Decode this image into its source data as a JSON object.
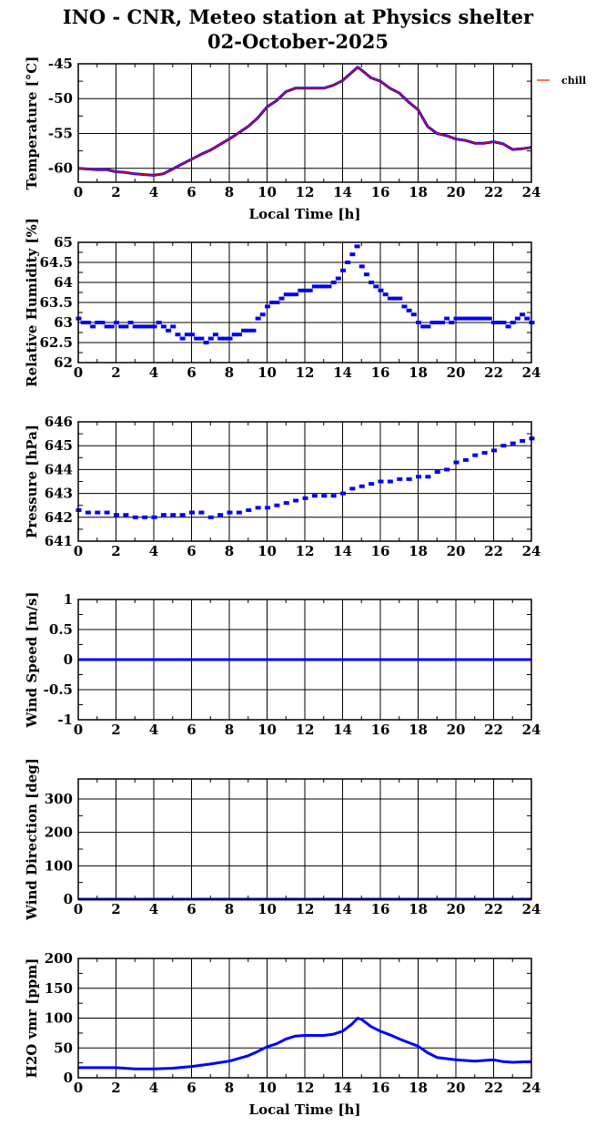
{
  "header": {
    "title": "INO - CNR, Meteo station at Physics shelter",
    "subtitle": "02-October-2025"
  },
  "chart_data": [
    {
      "type": "line",
      "ylabel": "Temperature [°C]",
      "xlabel": "Local Time [h]",
      "xlim": [
        0,
        24
      ],
      "ylim": [
        -62,
        -45
      ],
      "xticks": [
        0,
        2,
        4,
        6,
        8,
        10,
        12,
        14,
        16,
        18,
        20,
        22,
        24
      ],
      "yticks": [
        -60,
        -55,
        -50,
        -45
      ],
      "grid": true,
      "legend": {
        "entries": [
          "chill"
        ],
        "placement": "outside-right"
      },
      "series": [
        {
          "color": "#0000ff",
          "x": [
            0,
            0.5,
            1,
            1.5,
            2,
            2.5,
            3,
            3.5,
            4,
            4.5,
            5,
            5.5,
            6,
            6.5,
            7,
            7.5,
            8,
            8.5,
            9,
            9.5,
            10,
            10.5,
            11,
            11.5,
            12,
            12.5,
            13,
            13.5,
            14,
            14.5,
            14.8,
            15,
            15.5,
            16,
            16.5,
            17,
            17.5,
            18,
            18.5,
            19,
            19.5,
            20,
            20.5,
            21,
            21.5,
            22,
            22.5,
            23,
            23.5,
            24
          ],
          "y": [
            -60,
            -60.1,
            -60.2,
            -60.2,
            -60.5,
            -60.6,
            -60.8,
            -60.9,
            -61,
            -60.8,
            -60.1,
            -59.4,
            -58.7,
            -58,
            -57.4,
            -56.6,
            -55.8,
            -54.9,
            -54.0,
            -52.8,
            -51.2,
            -50.3,
            -49.0,
            -48.5,
            -48.5,
            -48.5,
            -48.5,
            -48.1,
            -47.4,
            -46.2,
            -45.5,
            -45.9,
            -47,
            -47.5,
            -48.5,
            -49.2,
            -50.5,
            -51.6,
            -54.0,
            -55.0,
            -55.3,
            -55.8,
            -56.0,
            -56.4,
            -56.4,
            -56.2,
            -56.5,
            -57.3,
            -57.2,
            -57.0
          ]
        },
        {
          "name": "chill",
          "color": "#ff0000",
          "x": [
            0,
            0.5,
            1,
            1.5,
            2,
            2.5,
            3,
            3.5,
            4,
            4.5,
            5,
            5.5,
            6,
            6.5,
            7,
            7.5,
            8,
            8.5,
            9,
            9.5,
            10,
            10.5,
            11,
            11.5,
            12,
            12.5,
            13,
            13.5,
            14,
            14.5,
            14.8,
            15,
            15.5,
            16,
            16.5,
            17,
            17.5,
            18,
            18.5,
            19,
            19.5,
            20,
            20.5,
            21,
            21.5,
            22,
            22.5,
            23,
            23.5,
            24
          ],
          "y": [
            -60,
            -60.1,
            -60.2,
            -60.2,
            -60.5,
            -60.6,
            -60.8,
            -60.9,
            -61,
            -60.8,
            -60.1,
            -59.4,
            -58.7,
            -58,
            -57.4,
            -56.6,
            -55.8,
            -54.9,
            -54.0,
            -52.8,
            -51.2,
            -50.3,
            -49.0,
            -48.5,
            -48.5,
            -48.5,
            -48.5,
            -48.1,
            -47.4,
            -46.2,
            -45.5,
            -45.9,
            -47,
            -47.5,
            -48.5,
            -49.2,
            -50.5,
            -51.6,
            -54.0,
            -55.0,
            -55.3,
            -55.8,
            -56.0,
            -56.4,
            -56.4,
            -56.2,
            -56.5,
            -57.3,
            -57.2,
            -57.0
          ]
        }
      ]
    },
    {
      "type": "scatter",
      "ylabel": "Relative Humidity [%]",
      "xlim": [
        0,
        24
      ],
      "ylim": [
        62,
        65
      ],
      "xticks": [
        0,
        2,
        4,
        6,
        8,
        10,
        12,
        14,
        16,
        18,
        20,
        22,
        24
      ],
      "yticks": [
        62,
        62.5,
        63,
        63.5,
        64,
        64.5,
        65
      ],
      "ytick_labels": [
        "62",
        "62.5",
        "63",
        "63.5",
        "64",
        "64.5",
        "65"
      ],
      "grid": true,
      "series": [
        {
          "color": "#0000ff",
          "x": [
            0,
            0.25,
            0.5,
            0.75,
            1,
            1.25,
            1.5,
            1.75,
            2,
            2.25,
            2.5,
            2.75,
            3,
            3.25,
            3.5,
            3.75,
            4,
            4.25,
            4.5,
            4.75,
            5,
            5.25,
            5.5,
            5.75,
            6,
            6.25,
            6.5,
            6.75,
            7,
            7.25,
            7.5,
            7.75,
            8,
            8.25,
            8.5,
            8.75,
            9,
            9.25,
            9.5,
            9.75,
            10,
            10.25,
            10.5,
            10.75,
            11,
            11.25,
            11.5,
            11.75,
            12,
            12.25,
            12.5,
            12.75,
            13,
            13.25,
            13.5,
            13.75,
            14,
            14.25,
            14.5,
            14.75,
            15,
            15.25,
            15.5,
            15.75,
            16,
            16.25,
            16.5,
            16.75,
            17,
            17.25,
            17.5,
            17.75,
            18,
            18.25,
            18.5,
            18.75,
            19,
            19.25,
            19.5,
            19.75,
            20,
            20.25,
            20.5,
            20.75,
            21,
            21.25,
            21.5,
            21.75,
            22,
            22.25,
            22.5,
            22.75,
            23,
            23.25,
            23.5,
            23.75,
            24
          ],
          "y": [
            63.1,
            63,
            63,
            62.9,
            63,
            63,
            62.9,
            62.9,
            63,
            62.9,
            62.9,
            63,
            62.9,
            62.9,
            62.9,
            62.9,
            62.9,
            63,
            62.9,
            62.8,
            62.9,
            62.7,
            62.6,
            62.7,
            62.7,
            62.6,
            62.6,
            62.5,
            62.6,
            62.7,
            62.6,
            62.6,
            62.6,
            62.7,
            62.7,
            62.8,
            62.8,
            62.8,
            63.1,
            63.2,
            63.4,
            63.5,
            63.5,
            63.6,
            63.7,
            63.7,
            63.7,
            63.8,
            63.8,
            63.8,
            63.9,
            63.9,
            63.9,
            63.9,
            64.0,
            64.1,
            64.3,
            64.5,
            64.7,
            64.9,
            64.4,
            64.2,
            64.0,
            63.9,
            63.8,
            63.7,
            63.6,
            63.6,
            63.6,
            63.4,
            63.3,
            63.2,
            63.0,
            62.9,
            62.9,
            63.0,
            63.0,
            63.0,
            63.1,
            63.0,
            63.1,
            63.1,
            63.1,
            63.1,
            63.1,
            63.1,
            63.1,
            63.1,
            63.0,
            63.0,
            63.0,
            62.9,
            63.0,
            63.1,
            63.2,
            63.1,
            63.0
          ]
        }
      ]
    },
    {
      "type": "scatter",
      "ylabel": "Pressure [hPa]",
      "xlim": [
        0,
        24
      ],
      "ylim": [
        641,
        646
      ],
      "xticks": [
        0,
        2,
        4,
        6,
        8,
        10,
        12,
        14,
        16,
        18,
        20,
        22,
        24
      ],
      "yticks": [
        641,
        642,
        643,
        644,
        645,
        646
      ],
      "grid": true,
      "series": [
        {
          "color": "#0000ff",
          "x": [
            0,
            0.5,
            1,
            1.5,
            2,
            2.5,
            3,
            3.5,
            4,
            4.5,
            5,
            5.5,
            6,
            6.5,
            7,
            7.5,
            8,
            8.5,
            9,
            9.5,
            10,
            10.5,
            11,
            11.5,
            12,
            12.5,
            13,
            13.5,
            14,
            14.5,
            15,
            15.5,
            16,
            16.5,
            17,
            17.5,
            18,
            18.5,
            19,
            19.5,
            20,
            20.5,
            21,
            21.5,
            22,
            22.5,
            23,
            23.5,
            24
          ],
          "y": [
            642.3,
            642.2,
            642.2,
            642.2,
            642.1,
            642.1,
            642.0,
            642.0,
            642.0,
            642.1,
            642.1,
            642.1,
            642.2,
            642.2,
            642.0,
            642.1,
            642.2,
            642.2,
            642.3,
            642.4,
            642.4,
            642.5,
            642.6,
            642.7,
            642.8,
            642.9,
            642.9,
            642.9,
            643.0,
            643.2,
            643.3,
            643.4,
            643.5,
            643.5,
            643.6,
            643.6,
            643.7,
            643.7,
            643.9,
            644.0,
            644.3,
            644.4,
            644.6,
            644.7,
            644.8,
            645.0,
            645.1,
            645.2,
            645.3
          ]
        }
      ]
    },
    {
      "type": "line",
      "ylabel": "Wind Speed [m/s]",
      "xlim": [
        0,
        24
      ],
      "ylim": [
        -1,
        1
      ],
      "xticks": [
        0,
        2,
        4,
        6,
        8,
        10,
        12,
        14,
        16,
        18,
        20,
        22,
        24
      ],
      "yticks": [
        -1,
        -0.5,
        0,
        0.5,
        1
      ],
      "ytick_labels": [
        "-1",
        "-0.5",
        "0",
        "0.5",
        "1"
      ],
      "grid": true,
      "series": [
        {
          "color": "#0000ff",
          "x": [
            0,
            24
          ],
          "y": [
            0,
            0
          ]
        }
      ]
    },
    {
      "type": "line",
      "ylabel": "Wind Direction [deg]",
      "xlim": [
        0,
        24
      ],
      "ylim": [
        0,
        360
      ],
      "xticks": [
        0,
        2,
        4,
        6,
        8,
        10,
        12,
        14,
        16,
        18,
        20,
        22,
        24
      ],
      "yticks": [
        0,
        100,
        200,
        300
      ],
      "grid": true,
      "series": [
        {
          "color": "#0000ff",
          "x": [
            0,
            24
          ],
          "y": [
            0,
            0
          ]
        }
      ]
    },
    {
      "type": "line",
      "ylabel": "H2O vmr [ppm]",
      "xlabel": "Local Time [h]",
      "xlim": [
        0,
        24
      ],
      "ylim": [
        0,
        200
      ],
      "xticks": [
        0,
        2,
        4,
        6,
        8,
        10,
        12,
        14,
        16,
        18,
        20,
        22,
        24
      ],
      "yticks": [
        0,
        50,
        100,
        150,
        200
      ],
      "grid": true,
      "series": [
        {
          "color": "#0000ff",
          "x": [
            0,
            1,
            2,
            3,
            4,
            5,
            6,
            7,
            8,
            9,
            9.5,
            10,
            10.5,
            11,
            11.5,
            12,
            12.5,
            13,
            13.5,
            14,
            14.5,
            14.8,
            15,
            15.5,
            16,
            16.5,
            17,
            17.5,
            18,
            18.5,
            19,
            20,
            21,
            22,
            22.5,
            23,
            24
          ],
          "y": [
            17,
            17,
            17,
            15,
            15,
            16,
            19,
            23,
            28,
            37,
            44,
            52,
            57,
            65,
            70,
            71,
            71,
            71,
            73,
            78,
            90,
            100,
            98,
            86,
            78,
            72,
            65,
            59,
            53,
            42,
            34,
            30,
            28,
            30,
            27,
            26,
            27
          ]
        }
      ]
    }
  ]
}
